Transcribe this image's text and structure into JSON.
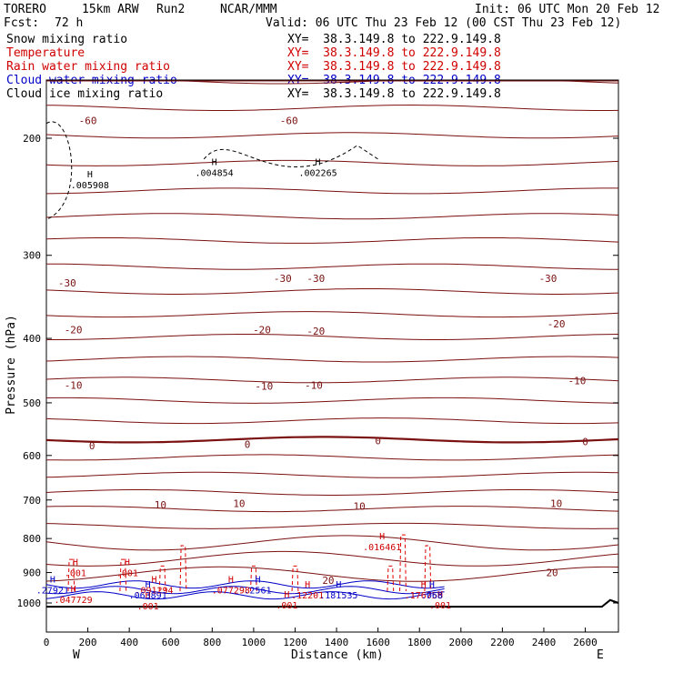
{
  "header": {
    "model": "TORERO",
    "resolution": "15km ARW",
    "run": "Run2",
    "org": "NCAR/MMM",
    "init": "Init: 06 UTC Mon 20 Feb 12",
    "fcst_label": "Fcst:",
    "fcst_value": "72 h",
    "valid": "Valid: 06 UTC Thu 23 Feb 12 (00 CST Thu 23 Feb 12)"
  },
  "fields": [
    {
      "name": "Snow mixing ratio",
      "xy": "XY=  38.3.149.8 to 222.9.149.8",
      "color": "#000000"
    },
    {
      "name": "Temperature",
      "xy": "XY=  38.3.149.8 to 222.9.149.8",
      "color": "#d00000"
    },
    {
      "name": "Rain water mixing ratio",
      "xy": "XY=  38.3.149.8 to 222.9.149.8",
      "color": "#d00000"
    },
    {
      "name": "Cloud water mixing ratio",
      "xy": "XY=  38.3.149.8 to 222.9.149.8",
      "color": "#0000c8"
    },
    {
      "name": "Cloud ice mixing ratio",
      "xy": "XY=  38.3.149.8 to 222.9.149.8",
      "color": "#000000"
    }
  ],
  "chart_data": {
    "type": "line",
    "xlabel": "Distance (km)",
    "ylabel": "Pressure (hPa)",
    "xlim": [
      0,
      2760
    ],
    "ylim": [
      100,
      1020
    ],
    "y_scale": "log",
    "x_ticks": [
      "0",
      "200",
      "400",
      "600",
      "800",
      "1000",
      "1200",
      "1400",
      "1600",
      "1800",
      "2000",
      "2200",
      "2400",
      "2600"
    ],
    "y_ticks": [
      "200",
      "300",
      "400",
      "500",
      "600",
      "700",
      "800",
      "900",
      "1000"
    ],
    "left_end_label": "W",
    "right_end_label": "E",
    "temperature_contour_labels": [
      {
        "text": "-60",
        "x": 200,
        "p": 188
      },
      {
        "text": "-60",
        "x": 1170,
        "p": 188
      },
      {
        "text": "-30",
        "x": 100,
        "p": 330
      },
      {
        "text": "-30",
        "x": 1140,
        "p": 325
      },
      {
        "text": "-30",
        "x": 1300,
        "p": 325
      },
      {
        "text": "-30",
        "x": 2420,
        "p": 325
      },
      {
        "text": "-20",
        "x": 130,
        "p": 388
      },
      {
        "text": "-20",
        "x": 1040,
        "p": 388
      },
      {
        "text": "-20",
        "x": 1300,
        "p": 390
      },
      {
        "text": "-20",
        "x": 2460,
        "p": 380
      },
      {
        "text": "-10",
        "x": 130,
        "p": 470
      },
      {
        "text": "-10",
        "x": 1050,
        "p": 472
      },
      {
        "text": "-10",
        "x": 1290,
        "p": 470
      },
      {
        "text": "-10",
        "x": 2560,
        "p": 463
      },
      {
        "text": "0",
        "x": 220,
        "p": 580
      },
      {
        "text": "0",
        "x": 970,
        "p": 577
      },
      {
        "text": "0",
        "x": 1600,
        "p": 570
      },
      {
        "text": "0",
        "x": 2600,
        "p": 572
      },
      {
        "text": "10",
        "x": 550,
        "p": 712
      },
      {
        "text": "10",
        "x": 930,
        "p": 708
      },
      {
        "text": "10",
        "x": 1510,
        "p": 715
      },
      {
        "text": "10",
        "x": 2460,
        "p": 708
      },
      {
        "text": "20",
        "x": 2440,
        "p": 900
      },
      {
        "text": "20",
        "x": 1360,
        "p": 925
      }
    ],
    "maxima": [
      {
        "text": ".005908",
        "x": 210,
        "p": 235,
        "color": "#000000"
      },
      {
        "text": ".004854",
        "x": 810,
        "p": 225,
        "color": "#000000"
      },
      {
        "text": ".002265",
        "x": 1310,
        "p": 225,
        "color": "#000000"
      },
      {
        "text": ".016461",
        "x": 1620,
        "p": 822,
        "color": "#d00000"
      },
      {
        "text": ".001",
        "x": 140,
        "p": 900,
        "color": "#d00000"
      },
      {
        "text": ".001",
        "x": 390,
        "p": 900,
        "color": "#d00000"
      },
      {
        "text": ".001",
        "x": 490,
        "p": 1010,
        "color": "#d00000"
      },
      {
        "text": ".001",
        "x": 1160,
        "p": 1007,
        "color": "#d00000"
      },
      {
        "text": ".001",
        "x": 1900,
        "p": 1007,
        "color": "#d00000"
      },
      {
        "text": ".047729",
        "x": 130,
        "p": 988,
        "color": "#d00000"
      },
      {
        "text": ".091294",
        "x": 520,
        "p": 955,
        "color": "#d00000"
      },
      {
        "text": ".077298",
        "x": 890,
        "p": 955,
        "color": "#d00000"
      },
      {
        "text": ".12201",
        "x": 1260,
        "p": 972,
        "color": "#d00000"
      },
      {
        "text": ".176758",
        "x": 1820,
        "p": 972,
        "color": "#d00000"
      },
      {
        "text": ".27921",
        "x": 30,
        "p": 955,
        "color": "#0000c8"
      },
      {
        "text": ".063891",
        "x": 490,
        "p": 972,
        "color": "#0000c8"
      },
      {
        "text": ".181535",
        "x": 1410,
        "p": 972,
        "color": "#0000c8"
      },
      {
        "text": ".2561",
        "x": 1020,
        "p": 955,
        "color": "#0000c8"
      },
      {
        "text": ".068",
        "x": 1860,
        "p": 972,
        "color": "#0000c8"
      }
    ]
  }
}
